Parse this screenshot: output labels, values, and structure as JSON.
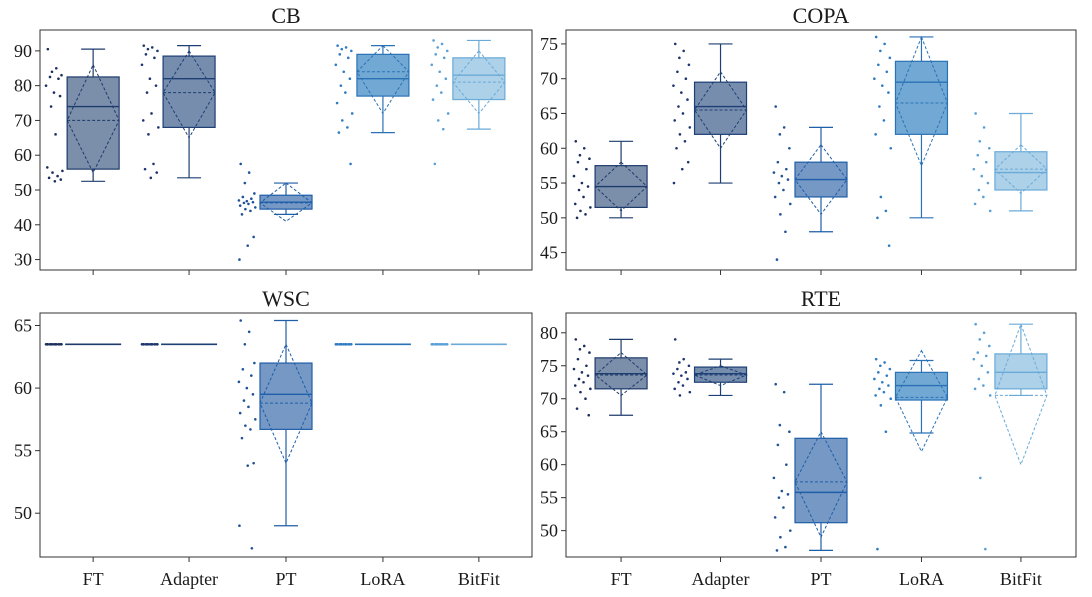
{
  "colors": {
    "FT": {
      "fill": "#7488a5",
      "stroke": "#1d3b6b",
      "dots": "#1b2e5c"
    },
    "Adapter": {
      "fill": "#6f87aa",
      "stroke": "#1d3f74",
      "dots": "#1d3570"
    },
    "PT": {
      "fill": "#6e92c2",
      "stroke": "#1f5ea8",
      "dots": "#1f5296"
    },
    "LoRA": {
      "fill": "#6aa3d2",
      "stroke": "#2a72b6",
      "dots": "#2f7bc2"
    },
    "BitFit": {
      "fill": "#a9cfe8",
      "stroke": "#6aaad8",
      "dots": "#5a9fd6"
    }
  },
  "chart_data": [
    {
      "type": "box",
      "title": "CB",
      "categories": [
        "FT",
        "Adapter",
        "PT",
        "LoRA",
        "BitFit"
      ],
      "ylim": [
        27,
        96
      ],
      "yticks": [
        30,
        40,
        50,
        60,
        70,
        80,
        90
      ],
      "show_category_labels": false,
      "series": [
        {
          "name": "FT",
          "whisker_low": 52.5,
          "q1": 56,
          "median": 74,
          "q3": 82.5,
          "whisker_high": 90.5,
          "mean": 70,
          "ci_low": 55,
          "ci_high": 86,
          "points": [
            90.5,
            85,
            84,
            83,
            82.5,
            82,
            80,
            78,
            77,
            74,
            66,
            56.5,
            55.5,
            55,
            54,
            53.5,
            53,
            52.5
          ]
        },
        {
          "name": "Adapter",
          "whisker_low": 53.5,
          "q1": 68,
          "median": 82,
          "q3": 88.5,
          "whisker_high": 91.5,
          "mean": 78,
          "ci_low": 65,
          "ci_high": 90,
          "points": [
            91.5,
            91,
            90.5,
            90,
            89,
            88,
            86,
            82,
            80,
            78,
            72,
            70,
            68,
            66,
            57.5,
            56,
            55,
            53.5
          ]
        },
        {
          "name": "PT",
          "whisker_low": 43,
          "q1": 44.5,
          "median": 46.5,
          "q3": 48.5,
          "whisker_high": 52,
          "mean": 46.3,
          "ci_low": 41,
          "ci_high": 52,
          "points": [
            57.5,
            55,
            52,
            49,
            48,
            47.5,
            47,
            46.8,
            46.5,
            46.3,
            46,
            45.5,
            45,
            44.5,
            44,
            43,
            36.5,
            34,
            30
          ]
        },
        {
          "name": "LoRA",
          "whisker_low": 66.5,
          "q1": 77,
          "median": 82,
          "q3": 89,
          "whisker_high": 91.5,
          "mean": 84,
          "ci_low": 72,
          "ci_high": 91.5,
          "points": [
            91.5,
            91,
            90.5,
            90,
            89,
            88,
            86,
            84,
            82,
            80,
            78,
            75,
            72,
            70,
            68,
            66.5,
            57.5
          ]
        },
        {
          "name": "BitFit",
          "whisker_low": 67.5,
          "q1": 76,
          "median": 83,
          "q3": 88,
          "whisker_high": 93,
          "mean": 81,
          "ci_low": 72,
          "ci_high": 90,
          "points": [
            93,
            92,
            91,
            90,
            89,
            88,
            86,
            84,
            82,
            80,
            78,
            76,
            72,
            70,
            67.5,
            57.5
          ]
        }
      ]
    },
    {
      "type": "box",
      "title": "COPA",
      "categories": [
        "FT",
        "Adapter",
        "PT",
        "LoRA",
        "BitFit"
      ],
      "ylim": [
        42.5,
        77
      ],
      "yticks": [
        45,
        50,
        55,
        60,
        65,
        70,
        75
      ],
      "show_category_labels": false,
      "series": [
        {
          "name": "FT",
          "whisker_low": 50,
          "q1": 51.5,
          "median": 54.5,
          "q3": 57.5,
          "whisker_high": 61,
          "mean": 54.5,
          "ci_low": 51,
          "ci_high": 58,
          "points": [
            61,
            60,
            59,
            58.5,
            58,
            57,
            56,
            55,
            54.5,
            54,
            53,
            52,
            51.5,
            51,
            50.5,
            50
          ]
        },
        {
          "name": "Adapter",
          "whisker_low": 55,
          "q1": 62,
          "median": 66,
          "q3": 69.5,
          "whisker_high": 75,
          "mean": 65.5,
          "ci_low": 60,
          "ci_high": 71,
          "points": [
            75,
            74,
            73,
            72,
            71,
            70,
            69,
            68,
            67,
            66,
            65,
            64,
            63,
            62,
            61,
            60,
            58,
            57,
            55
          ]
        },
        {
          "name": "PT",
          "whisker_low": 48,
          "q1": 53,
          "median": 55.5,
          "q3": 58,
          "whisker_high": 63,
          "mean": 55.5,
          "ci_low": 50.5,
          "ci_high": 60.5,
          "points": [
            66,
            63,
            62,
            60,
            58,
            57,
            56.5,
            56,
            55.5,
            55,
            54,
            53,
            52,
            50.5,
            48,
            44
          ]
        },
        {
          "name": "LoRA",
          "whisker_low": 50,
          "q1": 62,
          "median": 69.5,
          "q3": 72.5,
          "whisker_high": 76,
          "mean": 66.5,
          "ci_low": 57.5,
          "ci_high": 76,
          "points": [
            76,
            75,
            74,
            73,
            72,
            71,
            70,
            69,
            68,
            66,
            64,
            62,
            60,
            53,
            51,
            50,
            46
          ]
        },
        {
          "name": "BitFit",
          "whisker_low": 51,
          "q1": 54,
          "median": 56.5,
          "q3": 59.5,
          "whisker_high": 65,
          "mean": 57,
          "ci_low": 53.5,
          "ci_high": 60.5,
          "points": [
            65,
            63,
            61,
            60,
            59,
            58,
            57,
            56,
            55,
            54,
            53,
            52,
            51
          ]
        }
      ]
    },
    {
      "type": "box",
      "title": "WSC",
      "categories": [
        "FT",
        "Adapter",
        "PT",
        "LoRA",
        "BitFit"
      ],
      "ylim": [
        46.5,
        66
      ],
      "yticks": [
        50,
        55,
        60,
        65
      ],
      "show_category_labels": true,
      "series": [
        {
          "name": "FT",
          "whisker_low": 63.5,
          "q1": 63.5,
          "median": 63.5,
          "q3": 63.5,
          "whisker_high": 63.5,
          "mean": 63.5,
          "ci_low": 63.5,
          "ci_high": 63.5,
          "points": [
            63.5,
            63.5,
            63.5,
            63.5,
            63.5,
            63.5,
            63.5,
            63.5,
            63.5,
            63.5,
            63.5,
            63.5
          ]
        },
        {
          "name": "Adapter",
          "whisker_low": 63.5,
          "q1": 63.5,
          "median": 63.5,
          "q3": 63.5,
          "whisker_high": 63.5,
          "mean": 63.5,
          "ci_low": 63.5,
          "ci_high": 63.5,
          "points": [
            63.5,
            63.5,
            63.5,
            63.5,
            63.5,
            63.5,
            63.5,
            63.5,
            63.5,
            63.5,
            63.5,
            63.5
          ]
        },
        {
          "name": "PT",
          "whisker_low": 49,
          "q1": 56.7,
          "median": 59.5,
          "q3": 62,
          "whisker_high": 65.4,
          "mean": 58.8,
          "ci_low": 54,
          "ci_high": 63.5,
          "points": [
            65.4,
            64.5,
            63.5,
            62,
            61.5,
            61,
            60.5,
            60,
            59.5,
            59,
            58.5,
            58,
            57.5,
            57,
            56.7,
            56,
            54,
            53.8,
            49,
            47.2
          ]
        },
        {
          "name": "LoRA",
          "whisker_low": 63.5,
          "q1": 63.5,
          "median": 63.5,
          "q3": 63.5,
          "whisker_high": 63.5,
          "mean": 63.5,
          "ci_low": 63.5,
          "ci_high": 63.5,
          "points": [
            63.5,
            63.5,
            63.5,
            63.5,
            63.5,
            63.5,
            63.5,
            63.5,
            63.5,
            63.5,
            63.5,
            63.5
          ]
        },
        {
          "name": "BitFit",
          "whisker_low": 63.5,
          "q1": 63.5,
          "median": 63.5,
          "q3": 63.5,
          "whisker_high": 63.5,
          "mean": 63.5,
          "ci_low": 63.5,
          "ci_high": 63.5,
          "points": [
            63.5,
            63.5,
            63.5,
            63.5,
            63.5,
            63.5,
            63.5,
            63.5,
            63.5,
            63.5,
            63.5,
            63.5
          ]
        }
      ]
    },
    {
      "type": "box",
      "title": "RTE",
      "categories": [
        "FT",
        "Adapter",
        "PT",
        "LoRA",
        "BitFit"
      ],
      "ylim": [
        46,
        83
      ],
      "yticks": [
        50,
        55,
        60,
        65,
        70,
        75,
        80
      ],
      "show_category_labels": true,
      "series": [
        {
          "name": "FT",
          "whisker_low": 67.5,
          "q1": 71.5,
          "median": 73.8,
          "q3": 76.2,
          "whisker_high": 79,
          "mean": 73.6,
          "ci_low": 70.5,
          "ci_high": 77,
          "points": [
            79,
            78,
            77.5,
            77,
            76,
            75,
            74.5,
            74,
            73.5,
            73,
            72.5,
            72,
            71.5,
            71,
            70,
            68.5,
            67.5
          ]
        },
        {
          "name": "Adapter",
          "whisker_low": 70.5,
          "q1": 72.5,
          "median": 73.8,
          "q3": 74.8,
          "whisker_high": 76,
          "mean": 73.6,
          "ci_low": 72,
          "ci_high": 75,
          "points": [
            79,
            76,
            75.5,
            75,
            74.5,
            74,
            73.8,
            73.5,
            73,
            72.5,
            72,
            71.5,
            71,
            70.5
          ]
        },
        {
          "name": "PT",
          "whisker_low": 47,
          "q1": 51.2,
          "median": 55.8,
          "q3": 64,
          "whisker_high": 72.2,
          "mean": 57.4,
          "ci_low": 49,
          "ci_high": 65,
          "points": [
            72.2,
            71,
            66,
            65,
            63,
            60,
            58,
            56,
            55.5,
            55,
            53.5,
            52,
            50,
            49,
            47.5,
            47
          ]
        },
        {
          "name": "LoRA",
          "whisker_low": 64.8,
          "q1": 69.8,
          "median": 72,
          "q3": 74,
          "whisker_high": 75.8,
          "mean": 70.2,
          "ci_low": 62,
          "ci_high": 77.3,
          "points": [
            76,
            75.5,
            75,
            74.5,
            74,
            73.5,
            73,
            72.5,
            72,
            71.5,
            71,
            70.5,
            70,
            69,
            65,
            47.2
          ]
        },
        {
          "name": "BitFit",
          "whisker_low": 70.5,
          "q1": 71.5,
          "median": 74,
          "q3": 76.8,
          "whisker_high": 81.3,
          "mean": 70.5,
          "ci_low": 60,
          "ci_high": 81.3,
          "points": [
            81.3,
            80,
            79,
            78,
            77,
            76.5,
            76,
            75,
            74,
            73,
            72,
            71.5,
            70.5,
            58,
            47.2
          ]
        }
      ]
    }
  ]
}
